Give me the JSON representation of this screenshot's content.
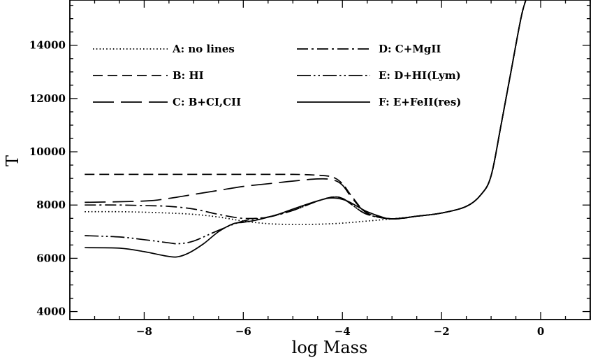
{
  "chart_data": {
    "type": "line",
    "title": "",
    "xlabel": "log Mass",
    "ylabel": "T",
    "xlim": [
      -9.5,
      1.0
    ],
    "ylim": [
      3700,
      15700
    ],
    "xticks": [
      -8,
      -6,
      -4,
      -2,
      0
    ],
    "yticks": [
      4000,
      6000,
      8000,
      10000,
      12000,
      14000
    ],
    "xtick_labels": [
      "−8",
      "−6",
      "−4",
      "−2",
      "0"
    ],
    "ytick_labels": [
      "4000",
      "6000",
      "8000",
      "10000",
      "12000",
      "14000"
    ],
    "grid": false,
    "legend_position": "top-left, two columns",
    "series": [
      {
        "name": "A: no lines",
        "style": "dotted",
        "x": [
          -9.2,
          -8.5,
          -8.0,
          -7.5,
          -7.0,
          -6.5,
          -6.0,
          -5.5,
          -5.0,
          -4.5,
          -4.0,
          -3.5,
          -3.0,
          -2.5,
          -2.0,
          -1.5,
          -1.2,
          -1.0,
          -0.8,
          -0.6,
          -0.4,
          -0.3
        ],
        "y": [
          7750,
          7750,
          7730,
          7700,
          7650,
          7550,
          7400,
          7300,
          7270,
          7280,
          7320,
          7400,
          7480,
          7580,
          7700,
          7950,
          8400,
          9100,
          11000,
          13000,
          15000,
          15700
        ]
      },
      {
        "name": "B: HI",
        "style": "short-dash",
        "x": [
          -9.2,
          -8.0,
          -7.0,
          -6.0,
          -5.0,
          -4.5,
          -4.2,
          -4.0,
          -3.8,
          -3.5,
          -3.0,
          -2.5,
          -2.0,
          -1.5,
          -1.2,
          -1.0,
          -0.8,
          -0.6,
          -0.4,
          -0.3
        ],
        "y": [
          9150,
          9150,
          9150,
          9150,
          9150,
          9120,
          9050,
          8800,
          8300,
          7700,
          7480,
          7580,
          7700,
          7950,
          8400,
          9100,
          11000,
          13000,
          15000,
          15700
        ]
      },
      {
        "name": "C: B+CI,CII",
        "style": "long-dash",
        "x": [
          -9.2,
          -8.0,
          -7.5,
          -7.0,
          -6.5,
          -6.0,
          -5.5,
          -5.0,
          -4.5,
          -4.2,
          -4.0,
          -3.8,
          -3.5,
          -3.0,
          -2.5,
          -2.0,
          -1.5,
          -1.2,
          -1.0,
          -0.8,
          -0.6,
          -0.4,
          -0.3
        ],
        "y": [
          8100,
          8150,
          8250,
          8400,
          8550,
          8700,
          8800,
          8900,
          8980,
          8950,
          8750,
          8250,
          7700,
          7480,
          7580,
          7700,
          7950,
          8400,
          9100,
          11000,
          13000,
          15000,
          15700
        ]
      },
      {
        "name": "D: C+MgII",
        "style": "dash-dot",
        "x": [
          -9.2,
          -8.5,
          -8.0,
          -7.5,
          -7.0,
          -6.5,
          -6.0,
          -5.5,
          -5.0,
          -4.5,
          -4.2,
          -4.0,
          -3.8,
          -3.5,
          -3.0,
          -2.5,
          -2.0,
          -1.5,
          -1.2,
          -1.0,
          -0.8,
          -0.6,
          -0.4,
          -0.3
        ],
        "y": [
          8000,
          8000,
          7980,
          7950,
          7850,
          7650,
          7500,
          7550,
          7800,
          8150,
          8300,
          8250,
          8000,
          7650,
          7480,
          7580,
          7700,
          7950,
          8400,
          9100,
          11000,
          13000,
          15000,
          15700
        ]
      },
      {
        "name": "E: D+HI(Lym)",
        "style": "dash-dot-dot",
        "x": [
          -9.2,
          -8.5,
          -8.0,
          -7.5,
          -7.3,
          -7.0,
          -6.5,
          -6.0,
          -5.5,
          -5.0,
          -4.5,
          -4.2,
          -4.0,
          -3.8,
          -3.5,
          -3.0,
          -2.5,
          -2.0,
          -1.5,
          -1.2,
          -1.0,
          -0.8,
          -0.6,
          -0.4,
          -0.3
        ],
        "y": [
          6850,
          6800,
          6700,
          6580,
          6550,
          6650,
          7050,
          7400,
          7550,
          7800,
          8150,
          8300,
          8250,
          8000,
          7650,
          7480,
          7580,
          7700,
          7950,
          8400,
          9100,
          11000,
          13000,
          15000,
          15700
        ]
      },
      {
        "name": "F: E+FeII(res)",
        "style": "solid",
        "x": [
          -9.2,
          -8.5,
          -8.0,
          -7.6,
          -7.35,
          -7.1,
          -6.8,
          -6.5,
          -6.2,
          -6.0,
          -5.7,
          -5.3,
          -5.0,
          -4.6,
          -4.3,
          -4.1,
          -3.9,
          -3.7,
          -3.5,
          -3.2,
          -3.0,
          -2.5,
          -2.0,
          -1.5,
          -1.2,
          -1.0,
          -0.8,
          -0.6,
          -0.4,
          -0.3
        ],
        "y": [
          6400,
          6380,
          6250,
          6100,
          6050,
          6200,
          6550,
          7000,
          7300,
          7350,
          7450,
          7650,
          7850,
          8100,
          8250,
          8250,
          8150,
          7950,
          7750,
          7550,
          7480,
          7580,
          7700,
          7950,
          8400,
          9100,
          11000,
          13000,
          15000,
          15700
        ]
      }
    ]
  }
}
